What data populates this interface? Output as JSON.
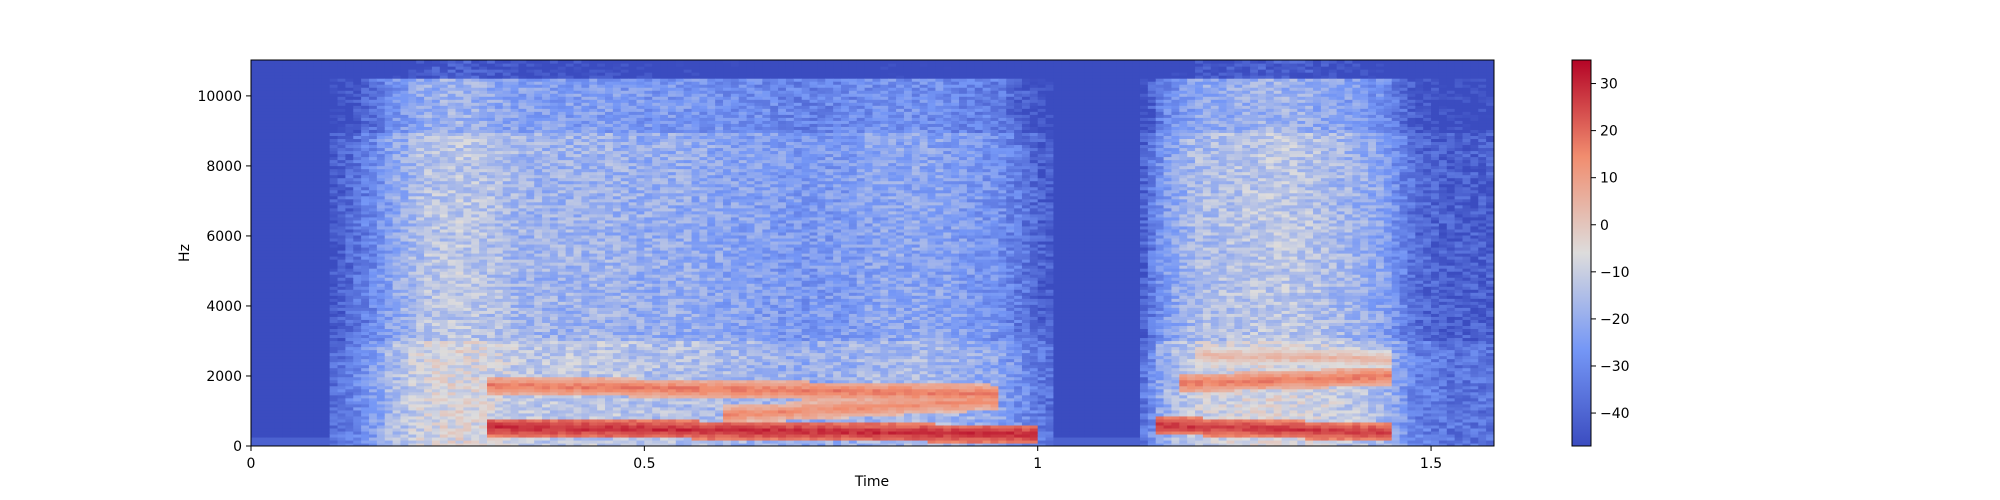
{
  "chart_data": {
    "type": "heatmap",
    "title": "",
    "xlabel": "Time",
    "ylabel": "Hz",
    "xlim": [
      0,
      1.58
    ],
    "ylim": [
      0,
      11025
    ],
    "x_ticks": [
      0,
      0.5,
      1,
      1.5
    ],
    "x_tick_labels": [
      "0",
      "0.5",
      "1",
      "1.5"
    ],
    "y_ticks": [
      0,
      2000,
      4000,
      6000,
      8000,
      10000
    ],
    "y_tick_labels": [
      "0",
      "2000",
      "4000",
      "6000",
      "8000",
      "10000"
    ],
    "colormap": "coolwarm",
    "colorbar": {
      "range": [
        -47,
        35
      ],
      "ticks": [
        30,
        20,
        10,
        0,
        -10,
        -20,
        -30,
        -40
      ],
      "tick_labels": [
        "30",
        "20",
        "10",
        "0",
        "−10",
        "−20",
        "−30",
        "−40"
      ]
    },
    "grid": false,
    "time_frames": [
      0.0,
      0.05,
      0.1,
      0.12,
      0.15,
      0.18,
      0.22,
      0.26,
      0.3,
      0.35,
      0.4,
      0.45,
      0.5,
      0.55,
      0.6,
      0.65,
      0.7,
      0.75,
      0.8,
      0.85,
      0.9,
      0.95,
      0.98,
      1.0,
      1.03,
      1.06,
      1.1,
      1.13,
      1.16,
      1.2,
      1.25,
      1.3,
      1.35,
      1.4,
      1.44,
      1.48,
      1.52,
      1.58
    ],
    "frame_level_db": [
      -47,
      -47,
      -45,
      -40,
      -32,
      -22,
      -14,
      -12,
      -14,
      -18,
      -18,
      -18,
      -20,
      -20,
      -22,
      -24,
      -26,
      -25,
      -22,
      -22,
      -24,
      -28,
      -35,
      -40,
      -45,
      -47,
      -47,
      -44,
      -25,
      -16,
      -14,
      -12,
      -14,
      -18,
      -22,
      -38,
      -42,
      -42
    ],
    "harmonics": [
      {
        "name": "",
        "t_start": 0.3,
        "t_end": 1.0,
        "f_start": 550,
        "f_end": 350,
        "db": 30
      },
      {
        "name": "",
        "t_start": 0.3,
        "t_end": 0.95,
        "f_start": 1750,
        "f_end": 1500,
        "db": 18
      },
      {
        "name": "",
        "t_start": 0.6,
        "t_end": 0.95,
        "f_start": 900,
        "f_end": 1300,
        "db": 15
      },
      {
        "name": "",
        "t_start": 1.15,
        "t_end": 1.45,
        "f_start": 600,
        "f_end": 400,
        "db": 28
      },
      {
        "name": "",
        "t_start": 1.18,
        "t_end": 1.45,
        "f_start": 1800,
        "f_end": 2000,
        "db": 18
      },
      {
        "name": "",
        "t_start": 1.2,
        "t_end": 1.45,
        "f_start": 2600,
        "f_end": 2500,
        "db": 5
      }
    ]
  }
}
